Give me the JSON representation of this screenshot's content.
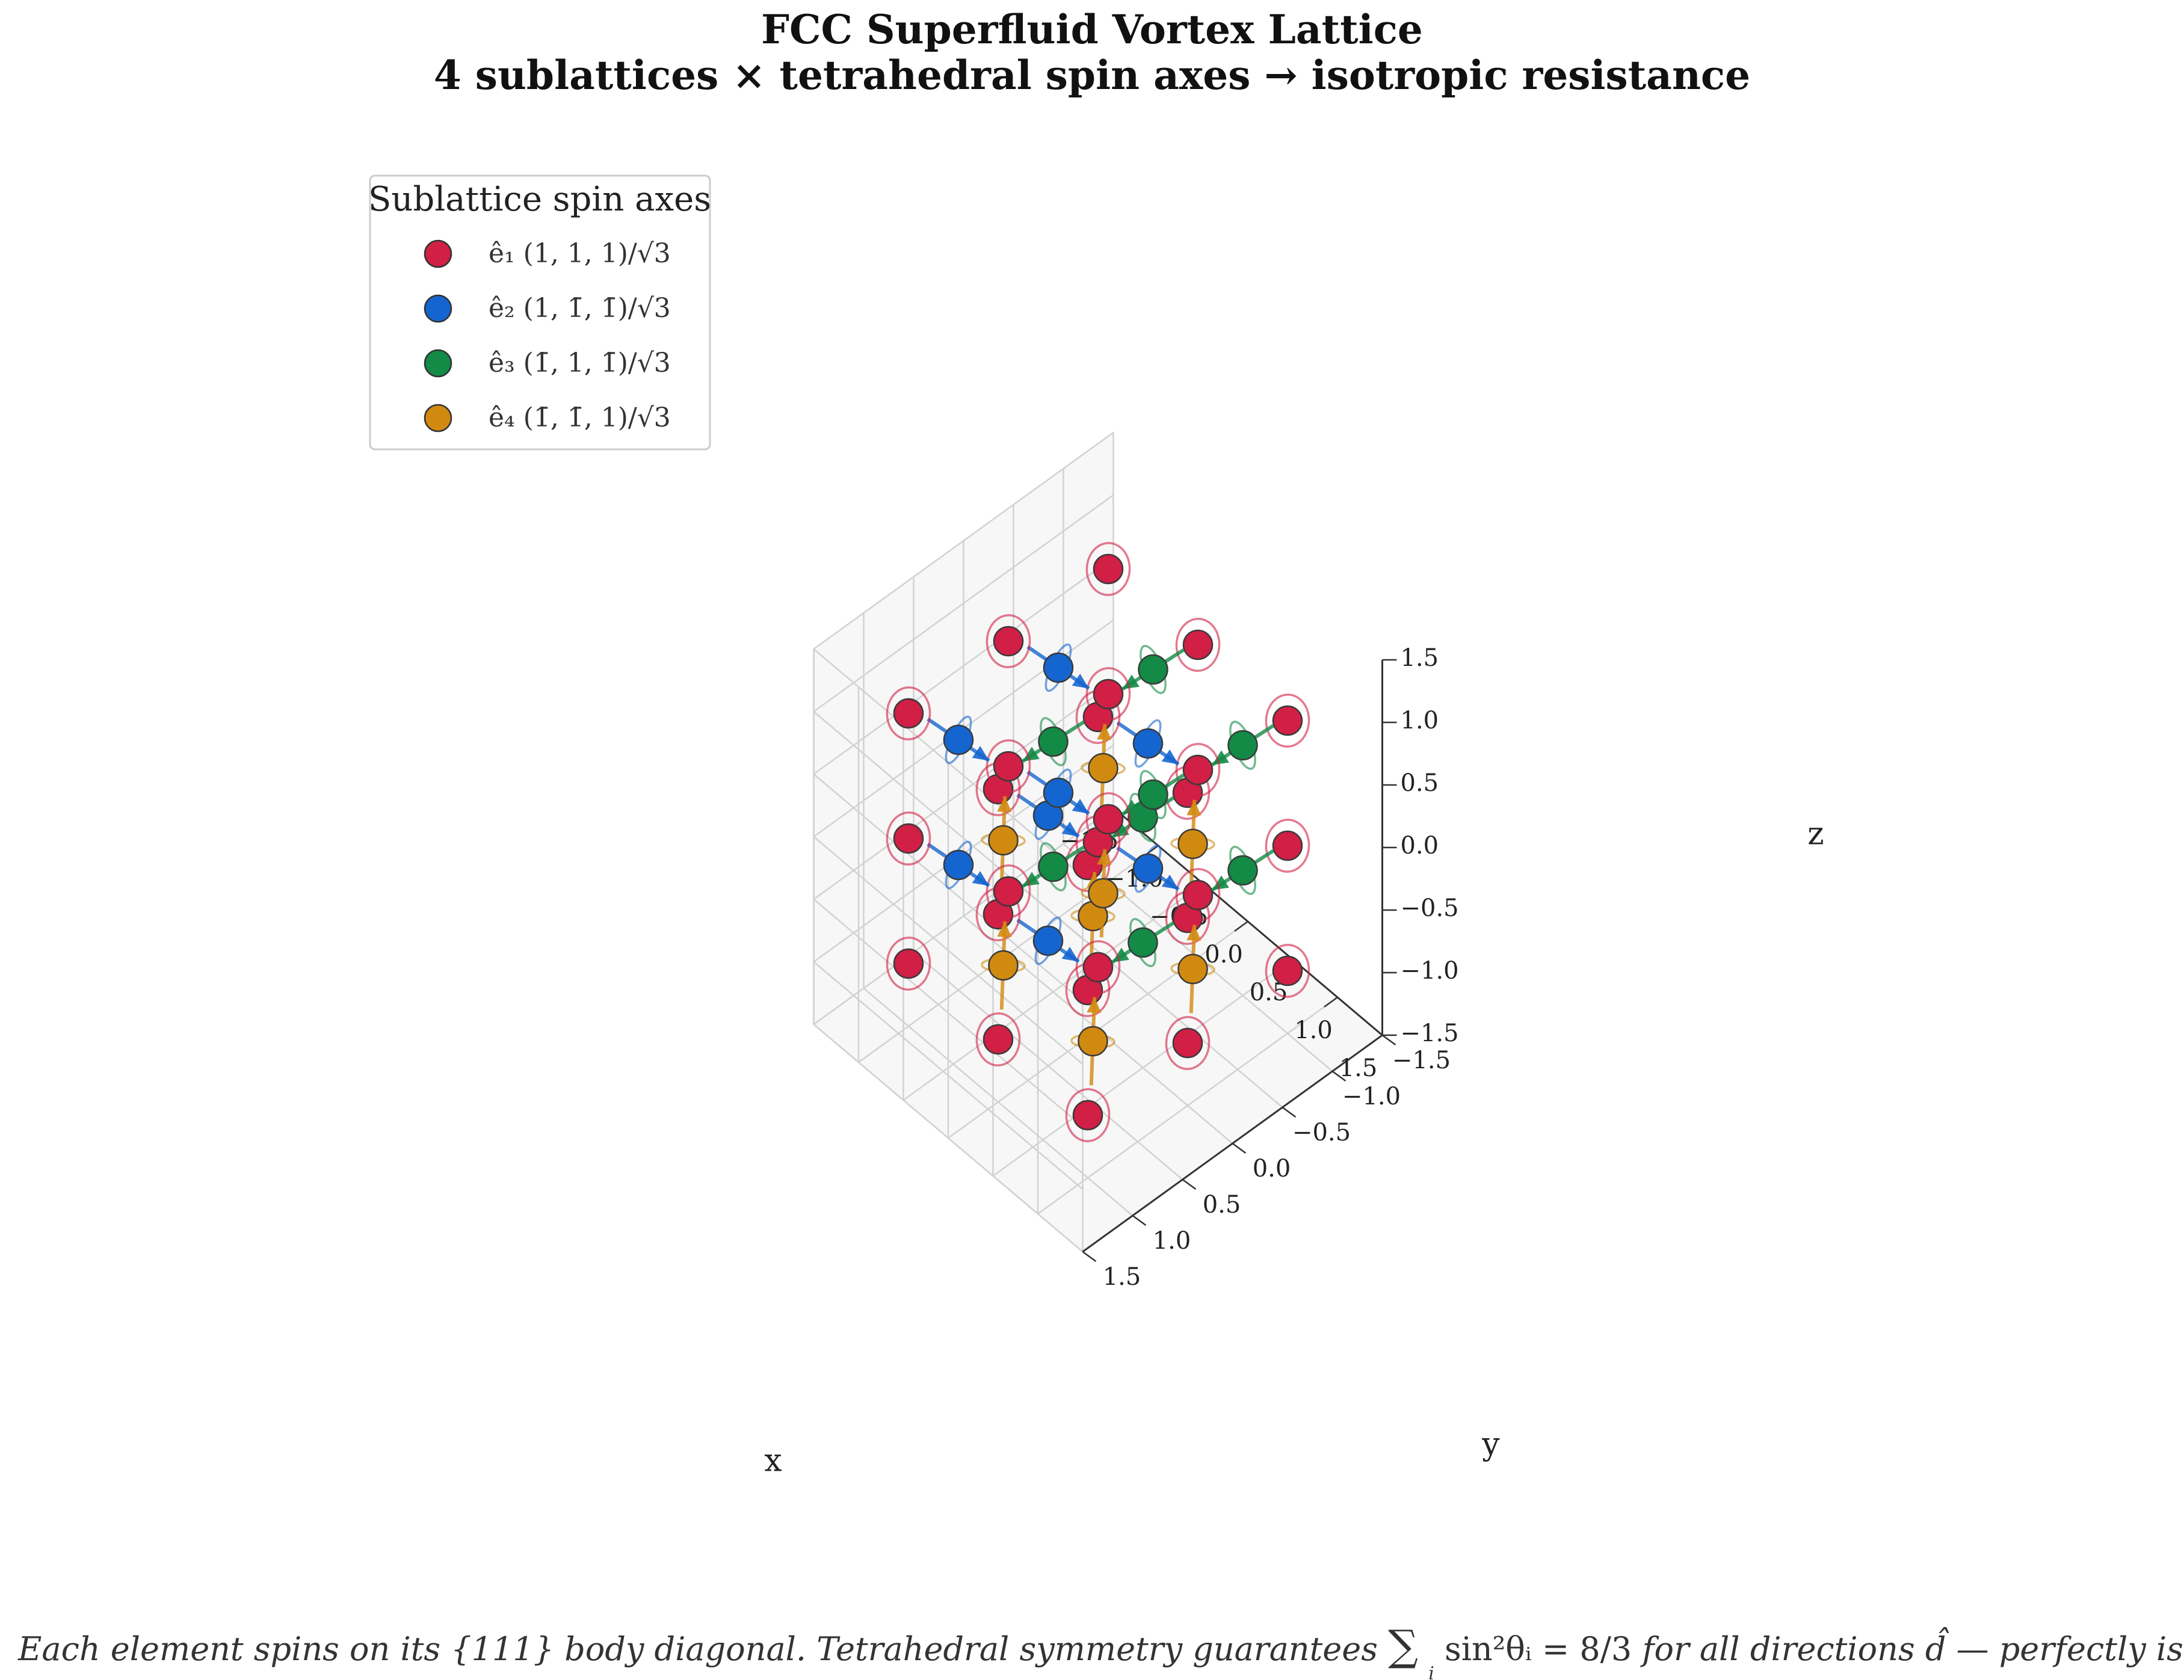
{
  "chart_data": {
    "type": "scatter",
    "projection": "3d",
    "title": "FCC Superfluid Vortex Lattice",
    "subtitle": "4 sublattices × tetrahedral spin axes → isotropic resistance",
    "xlabel": "x",
    "ylabel": "y",
    "zlabel": "z",
    "xlim": [
      -1.5,
      1.5
    ],
    "ylim": [
      -1.5,
      1.5
    ],
    "zlim": [
      -1.5,
      1.5
    ],
    "x_ticks": [
      "−1.5",
      "−1.0",
      "−0.5",
      "0.0",
      "0.5",
      "1.0",
      "1.5"
    ],
    "y_ticks": [
      "−1.5",
      "−1.0",
      "−0.5",
      "0.0",
      "0.5",
      "1.0",
      "1.5"
    ],
    "z_ticks": [
      "−1.5",
      "−1.0",
      "−0.5",
      "0.0",
      "0.5",
      "1.0",
      "1.5"
    ],
    "grid": true,
    "legend": {
      "title": "Sublattice spin axes",
      "placement": "top-left",
      "entries": [
        {
          "label": "ê₁ (1, 1, 1)/√3",
          "color": "#d11f45"
        },
        {
          "label": "ê₂ (1, 1̄, 1̄)/√3",
          "color": "#1565d0"
        },
        {
          "label": "ê₃ (1̄, 1, 1̄)/√3",
          "color": "#138a45"
        },
        {
          "label": "ê₄ (1̄, 1̄, 1)/√3",
          "color": "#d18a10"
        }
      ]
    },
    "series": [
      {
        "color": "#d11f45",
        "axis": [
          1,
          1,
          1
        ],
        "points": [
          [
            -1,
            -1,
            -1
          ],
          [
            -1,
            -1,
            0
          ],
          [
            -1,
            -1,
            1
          ],
          [
            -1,
            0,
            -1
          ],
          [
            -1,
            0,
            0
          ],
          [
            -1,
            0,
            1
          ],
          [
            -1,
            1,
            -1
          ],
          [
            -1,
            1,
            0
          ],
          [
            -1,
            1,
            1
          ],
          [
            0,
            -1,
            -1
          ],
          [
            0,
            -1,
            0
          ],
          [
            0,
            -1,
            1
          ],
          [
            0,
            0,
            -1
          ],
          [
            0,
            0,
            0
          ],
          [
            0,
            0,
            1
          ],
          [
            0,
            1,
            -1
          ],
          [
            0,
            1,
            0
          ],
          [
            0,
            1,
            1
          ],
          [
            1,
            -1,
            -1
          ],
          [
            1,
            -1,
            0
          ],
          [
            1,
            -1,
            1
          ],
          [
            1,
            0,
            -1
          ],
          [
            1,
            0,
            0
          ],
          [
            1,
            0,
            1
          ],
          [
            1,
            1,
            -1
          ],
          [
            1,
            1,
            0
          ],
          [
            1,
            1,
            1
          ]
        ]
      },
      {
        "color": "#1565d0",
        "axis": [
          1,
          -1,
          -1
        ],
        "points": [
          [
            -1,
            -0.5,
            -0.5
          ],
          [
            -1,
            0.5,
            -0.5
          ],
          [
            -1,
            -0.5,
            0.5
          ],
          [
            -1,
            0.5,
            0.5
          ],
          [
            0,
            -0.5,
            -0.5
          ],
          [
            0,
            0.5,
            -0.5
          ],
          [
            0,
            -0.5,
            0.5
          ],
          [
            0,
            0.5,
            0.5
          ]
        ]
      },
      {
        "color": "#138a45",
        "axis": [
          -1,
          1,
          -1
        ],
        "points": [
          [
            -0.5,
            -1,
            -0.5
          ],
          [
            0.5,
            -1,
            -0.5
          ],
          [
            -0.5,
            -1,
            0.5
          ],
          [
            0.5,
            -1,
            0.5
          ],
          [
            -0.5,
            0,
            -0.5
          ],
          [
            0.5,
            0,
            -0.5
          ],
          [
            -0.5,
            0,
            0.5
          ],
          [
            0.5,
            0,
            0.5
          ]
        ]
      },
      {
        "color": "#d18a10",
        "axis": [
          -1,
          -1,
          1
        ],
        "points": [
          [
            -0.5,
            -0.5,
            -1
          ],
          [
            0.5,
            -0.5,
            -1
          ],
          [
            -0.5,
            0.5,
            -1
          ],
          [
            0.5,
            0.5,
            -1
          ],
          [
            -0.5,
            -0.5,
            0
          ],
          [
            0.5,
            -0.5,
            0
          ],
          [
            -0.5,
            0.5,
            0
          ],
          [
            0.5,
            0.5,
            0
          ]
        ]
      }
    ]
  },
  "caption": {
    "part1": "Each element spins on its {111} body diagonal.  Tetrahedral symmetry guarantees ",
    "sum": "∑",
    "sum_index": "i",
    "formula": "sin²θᵢ = 8/3",
    "part2": " for all directions d̂  —  perfectly isotropic."
  }
}
